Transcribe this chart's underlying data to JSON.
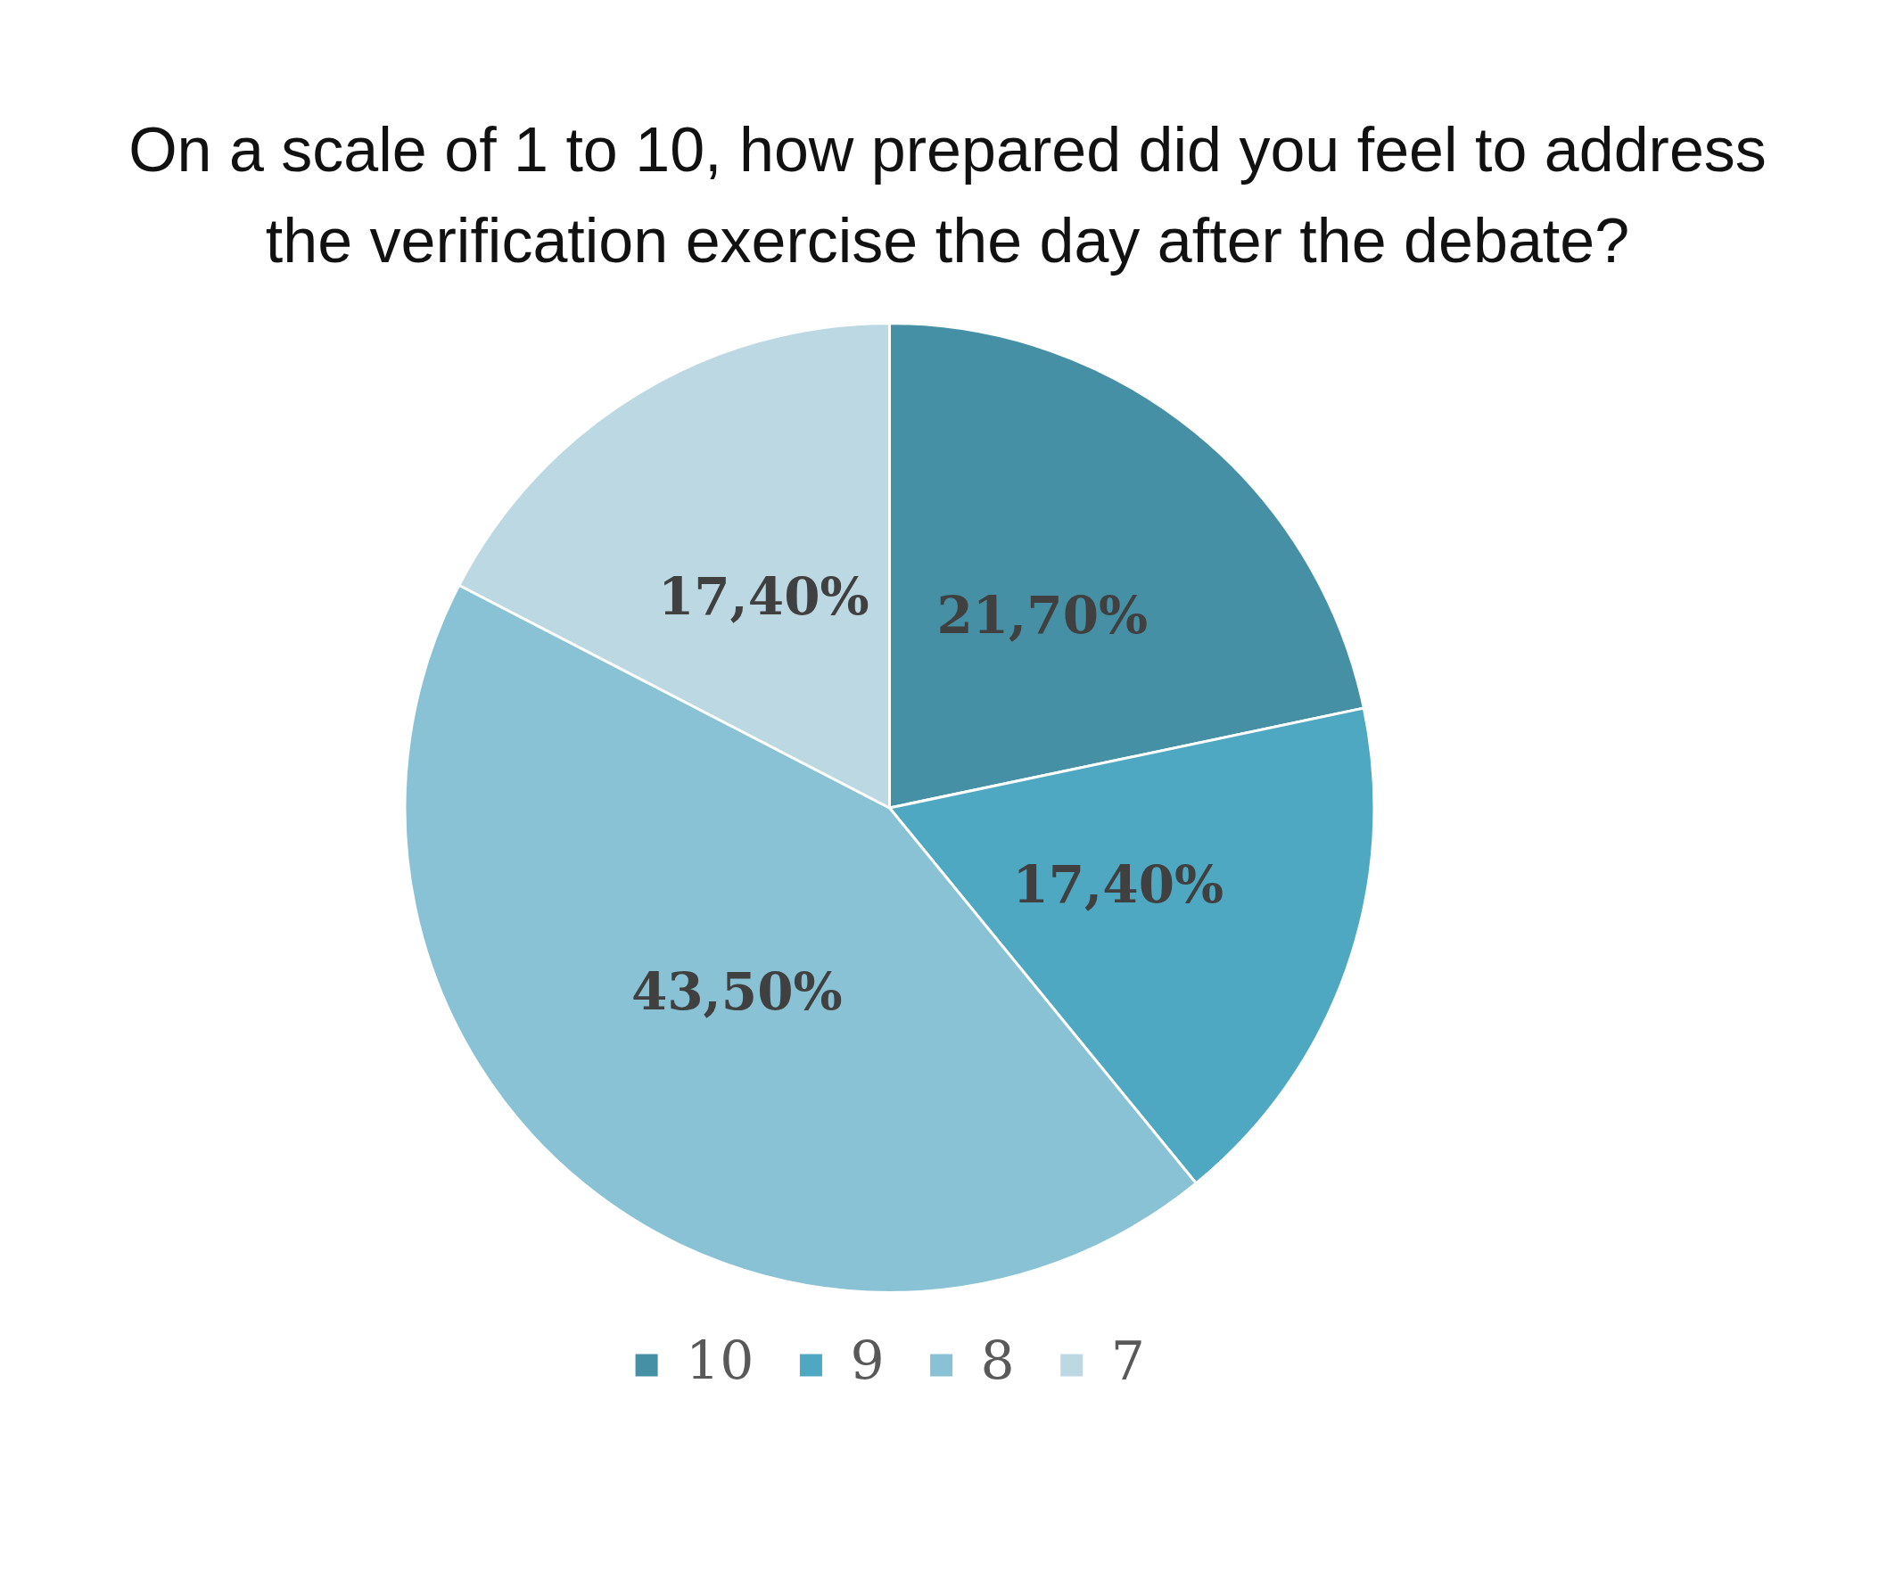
{
  "chart_data": {
    "type": "pie",
    "title": "On a scale of 1 to 10, how prepared did you feel to address the verification exercise the day after the debate?",
    "categories": [
      "10",
      "9",
      "8",
      "7"
    ],
    "values": [
      21.7,
      17.4,
      43.5,
      17.4
    ],
    "value_labels": [
      "21,70%",
      "17,40%",
      "43,50%",
      "17,40%"
    ],
    "colors": [
      "#4590a5",
      "#4fa8c1",
      "#89c2d4",
      "#bcd9e3"
    ],
    "legend": "bottom"
  }
}
